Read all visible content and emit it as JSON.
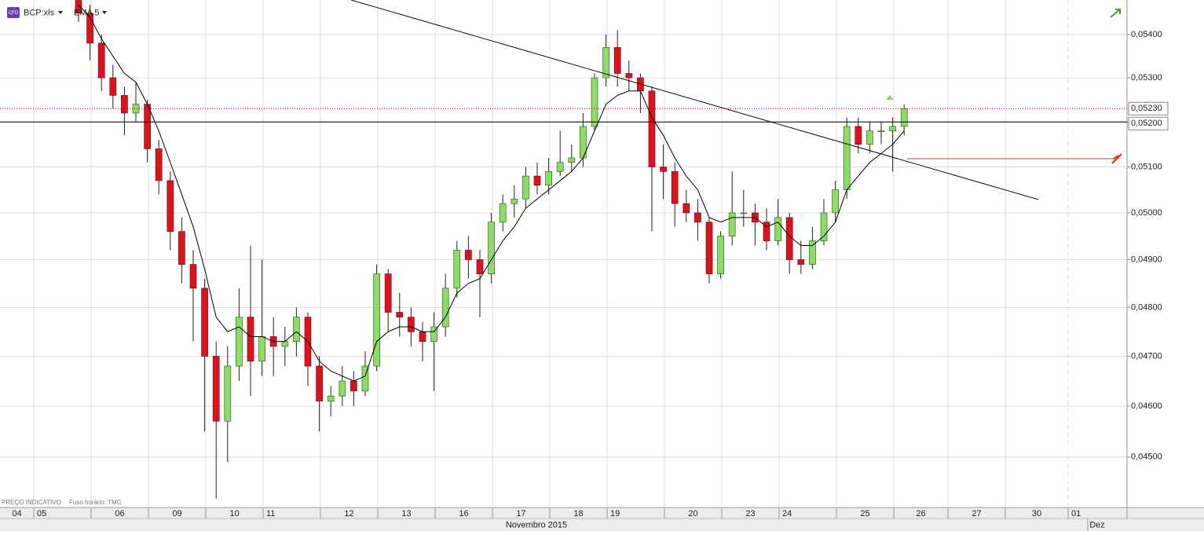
{
  "chart_data": {
    "type": "candlestick",
    "badge": "CFD",
    "title": "BCP:xls",
    "log_scale": true,
    "grid": true,
    "up_color": "#8edb68",
    "down_color": "#d8141e",
    "ylim": [
      0.04403,
      0.05481
    ],
    "yticks": [
      {
        "value": 0.045,
        "label": "0,04500"
      },
      {
        "value": 0.046,
        "label": "0,04600"
      },
      {
        "value": 0.047,
        "label": "0,04700"
      },
      {
        "value": 0.048,
        "label": "0,04800"
      },
      {
        "value": 0.049,
        "label": "0,04900"
      },
      {
        "value": 0.05,
        "label": "0,05000"
      },
      {
        "value": 0.051,
        "label": "0,05100"
      },
      {
        "value": 0.052,
        "label": "0,05200"
      },
      {
        "value": 0.053,
        "label": "0,05300"
      },
      {
        "value": 0.054,
        "label": "0,05400"
      }
    ],
    "price_lines": [
      {
        "value": 0.0523,
        "label": "0,05230",
        "color": "#d00000"
      },
      {
        "value": 0.052,
        "label": "0,05200",
        "color": "#000000"
      }
    ],
    "days": [
      "04",
      "05",
      "06",
      "09",
      "10",
      "11",
      "12",
      "13",
      "16",
      "17",
      "18",
      "19",
      "20",
      "23",
      "24",
      "25",
      "26",
      "27",
      "30",
      "01"
    ],
    "months": [
      "Novembro 2015",
      "Dez"
    ],
    "footer": "PREÇO INDICATIVO",
    "timezone": "Fuso horário: TMG",
    "candles": [
      [
        0.0548,
        0.055,
        0.0543,
        0.0545
      ],
      [
        0.0545,
        0.0547,
        0.0534,
        0.0538
      ],
      [
        0.0538,
        0.054,
        0.0527,
        0.053
      ],
      [
        0.053,
        0.0533,
        0.0523,
        0.0526
      ],
      [
        0.0526,
        0.0528,
        0.0517,
        0.0522
      ],
      [
        0.0522,
        0.0529,
        0.052,
        0.0524
      ],
      [
        0.0524,
        0.0525,
        0.0511,
        0.0514
      ],
      [
        0.0514,
        0.0516,
        0.0504,
        0.0507
      ],
      [
        0.0507,
        0.0509,
        0.0492,
        0.0496
      ],
      [
        0.0496,
        0.0499,
        0.0485,
        0.0489
      ],
      [
        0.0489,
        0.0492,
        0.0473,
        0.0484
      ],
      [
        0.0484,
        0.0486,
        0.0455,
        0.047
      ],
      [
        0.047,
        0.0473,
        0.0442,
        0.0457
      ],
      [
        0.0457,
        0.0472,
        0.0449,
        0.0468
      ],
      [
        0.0468,
        0.0484,
        0.0465,
        0.0478
      ],
      [
        0.0478,
        0.0493,
        0.0462,
        0.0469
      ],
      [
        0.0469,
        0.049,
        0.0466,
        0.0474
      ],
      [
        0.0474,
        0.0478,
        0.0466,
        0.0472
      ],
      [
        0.0472,
        0.0476,
        0.0468,
        0.0473
      ],
      [
        0.0473,
        0.048,
        0.047,
        0.0478
      ],
      [
        0.0478,
        0.0479,
        0.0464,
        0.0468
      ],
      [
        0.0468,
        0.047,
        0.0455,
        0.0461
      ],
      [
        0.0461,
        0.0464,
        0.0458,
        0.0462
      ],
      [
        0.0462,
        0.0468,
        0.046,
        0.0465
      ],
      [
        0.0465,
        0.0467,
        0.046,
        0.0463
      ],
      [
        0.0463,
        0.0471,
        0.0462,
        0.0468
      ],
      [
        0.0468,
        0.0489,
        0.0467,
        0.0487
      ],
      [
        0.0487,
        0.0488,
        0.0475,
        0.0479
      ],
      [
        0.0479,
        0.0483,
        0.0474,
        0.0478
      ],
      [
        0.0478,
        0.048,
        0.0472,
        0.0475
      ],
      [
        0.0475,
        0.0477,
        0.0469,
        0.0473
      ],
      [
        0.0473,
        0.0479,
        0.0463,
        0.0476
      ],
      [
        0.0476,
        0.0487,
        0.0474,
        0.0484
      ],
      [
        0.0484,
        0.0494,
        0.0482,
        0.0492
      ],
      [
        0.0492,
        0.0495,
        0.0486,
        0.049
      ],
      [
        0.049,
        0.0492,
        0.0478,
        0.0487
      ],
      [
        0.0487,
        0.05,
        0.0485,
        0.0498
      ],
      [
        0.0498,
        0.0504,
        0.0496,
        0.0502
      ],
      [
        0.0502,
        0.0506,
        0.0499,
        0.0503
      ],
      [
        0.0503,
        0.051,
        0.0501,
        0.0508
      ],
      [
        0.0508,
        0.0511,
        0.0504,
        0.0506
      ],
      [
        0.0506,
        0.0512,
        0.0504,
        0.0509
      ],
      [
        0.0509,
        0.0518,
        0.0508,
        0.0511
      ],
      [
        0.0511,
        0.0515,
        0.0509,
        0.0512
      ],
      [
        0.0512,
        0.0522,
        0.051,
        0.0519
      ],
      [
        0.0519,
        0.0531,
        0.0518,
        0.053
      ],
      [
        0.053,
        0.054,
        0.0528,
        0.0537
      ],
      [
        0.0537,
        0.0541,
        0.0528,
        0.0531
      ],
      [
        0.0531,
        0.0534,
        0.0527,
        0.053
      ],
      [
        0.053,
        0.0531,
        0.0522,
        0.0527
      ],
      [
        0.0527,
        0.0528,
        0.0496,
        0.051
      ],
      [
        0.051,
        0.0515,
        0.0503,
        0.0509
      ],
      [
        0.0509,
        0.0511,
        0.0497,
        0.0502
      ],
      [
        0.0502,
        0.0505,
        0.0498,
        0.05
      ],
      [
        0.05,
        0.0503,
        0.0494,
        0.0498
      ],
      [
        0.0498,
        0.0499,
        0.0485,
        0.0487
      ],
      [
        0.0487,
        0.0496,
        0.0486,
        0.0495
      ],
      [
        0.0495,
        0.0509,
        0.0493,
        0.05
      ],
      [
        0.05,
        0.0505,
        0.0497,
        0.05
      ],
      [
        0.05,
        0.0502,
        0.0493,
        0.0498
      ],
      [
        0.0498,
        0.0501,
        0.0492,
        0.0494
      ],
      [
        0.0494,
        0.0503,
        0.0493,
        0.0499
      ],
      [
        0.0499,
        0.05,
        0.0487,
        0.049
      ],
      [
        0.049,
        0.0494,
        0.0487,
        0.0489
      ],
      [
        0.0489,
        0.0497,
        0.0488,
        0.0494
      ],
      [
        0.0494,
        0.0503,
        0.0493,
        0.05
      ],
      [
        0.05,
        0.0507,
        0.0498,
        0.0505
      ],
      [
        0.0505,
        0.0521,
        0.0503,
        0.0519
      ],
      [
        0.0519,
        0.0521,
        0.0513,
        0.0515
      ],
      [
        0.0515,
        0.052,
        0.0513,
        0.0518
      ],
      [
        0.0518,
        0.052,
        0.0515,
        0.0518
      ],
      [
        0.0518,
        0.0521,
        0.0509,
        0.0519
      ],
      [
        0.0519,
        0.0524,
        0.0517,
        0.0523
      ]
    ],
    "ema": {
      "name": "EMA 5",
      "color": "#000000",
      "values": [
        0.0547,
        0.0544,
        0.0539,
        0.0535,
        0.0531,
        0.0529,
        0.0524,
        0.0518,
        0.0511,
        0.0504,
        0.0497,
        0.0488,
        0.0478,
        0.0475,
        0.0476,
        0.0474,
        0.0474,
        0.0473,
        0.0473,
        0.0475,
        0.0473,
        0.0469,
        0.0467,
        0.0466,
        0.0465,
        0.0466,
        0.0473,
        0.0475,
        0.0476,
        0.0476,
        0.0475,
        0.0475,
        0.0478,
        0.0483,
        0.0485,
        0.0486,
        0.049,
        0.0494,
        0.0497,
        0.0501,
        0.0503,
        0.0505,
        0.0507,
        0.0509,
        0.0512,
        0.0518,
        0.0524,
        0.0526,
        0.0527,
        0.0527,
        0.0521,
        0.0517,
        0.0512,
        0.0508,
        0.0505,
        0.0499,
        0.0498,
        0.0499,
        0.0499,
        0.0499,
        0.0497,
        0.0498,
        0.0495,
        0.0493,
        0.0493,
        0.0495,
        0.0498,
        0.0505,
        0.0508,
        0.0511,
        0.0513,
        0.0515,
        0.0518
      ]
    }
  }
}
